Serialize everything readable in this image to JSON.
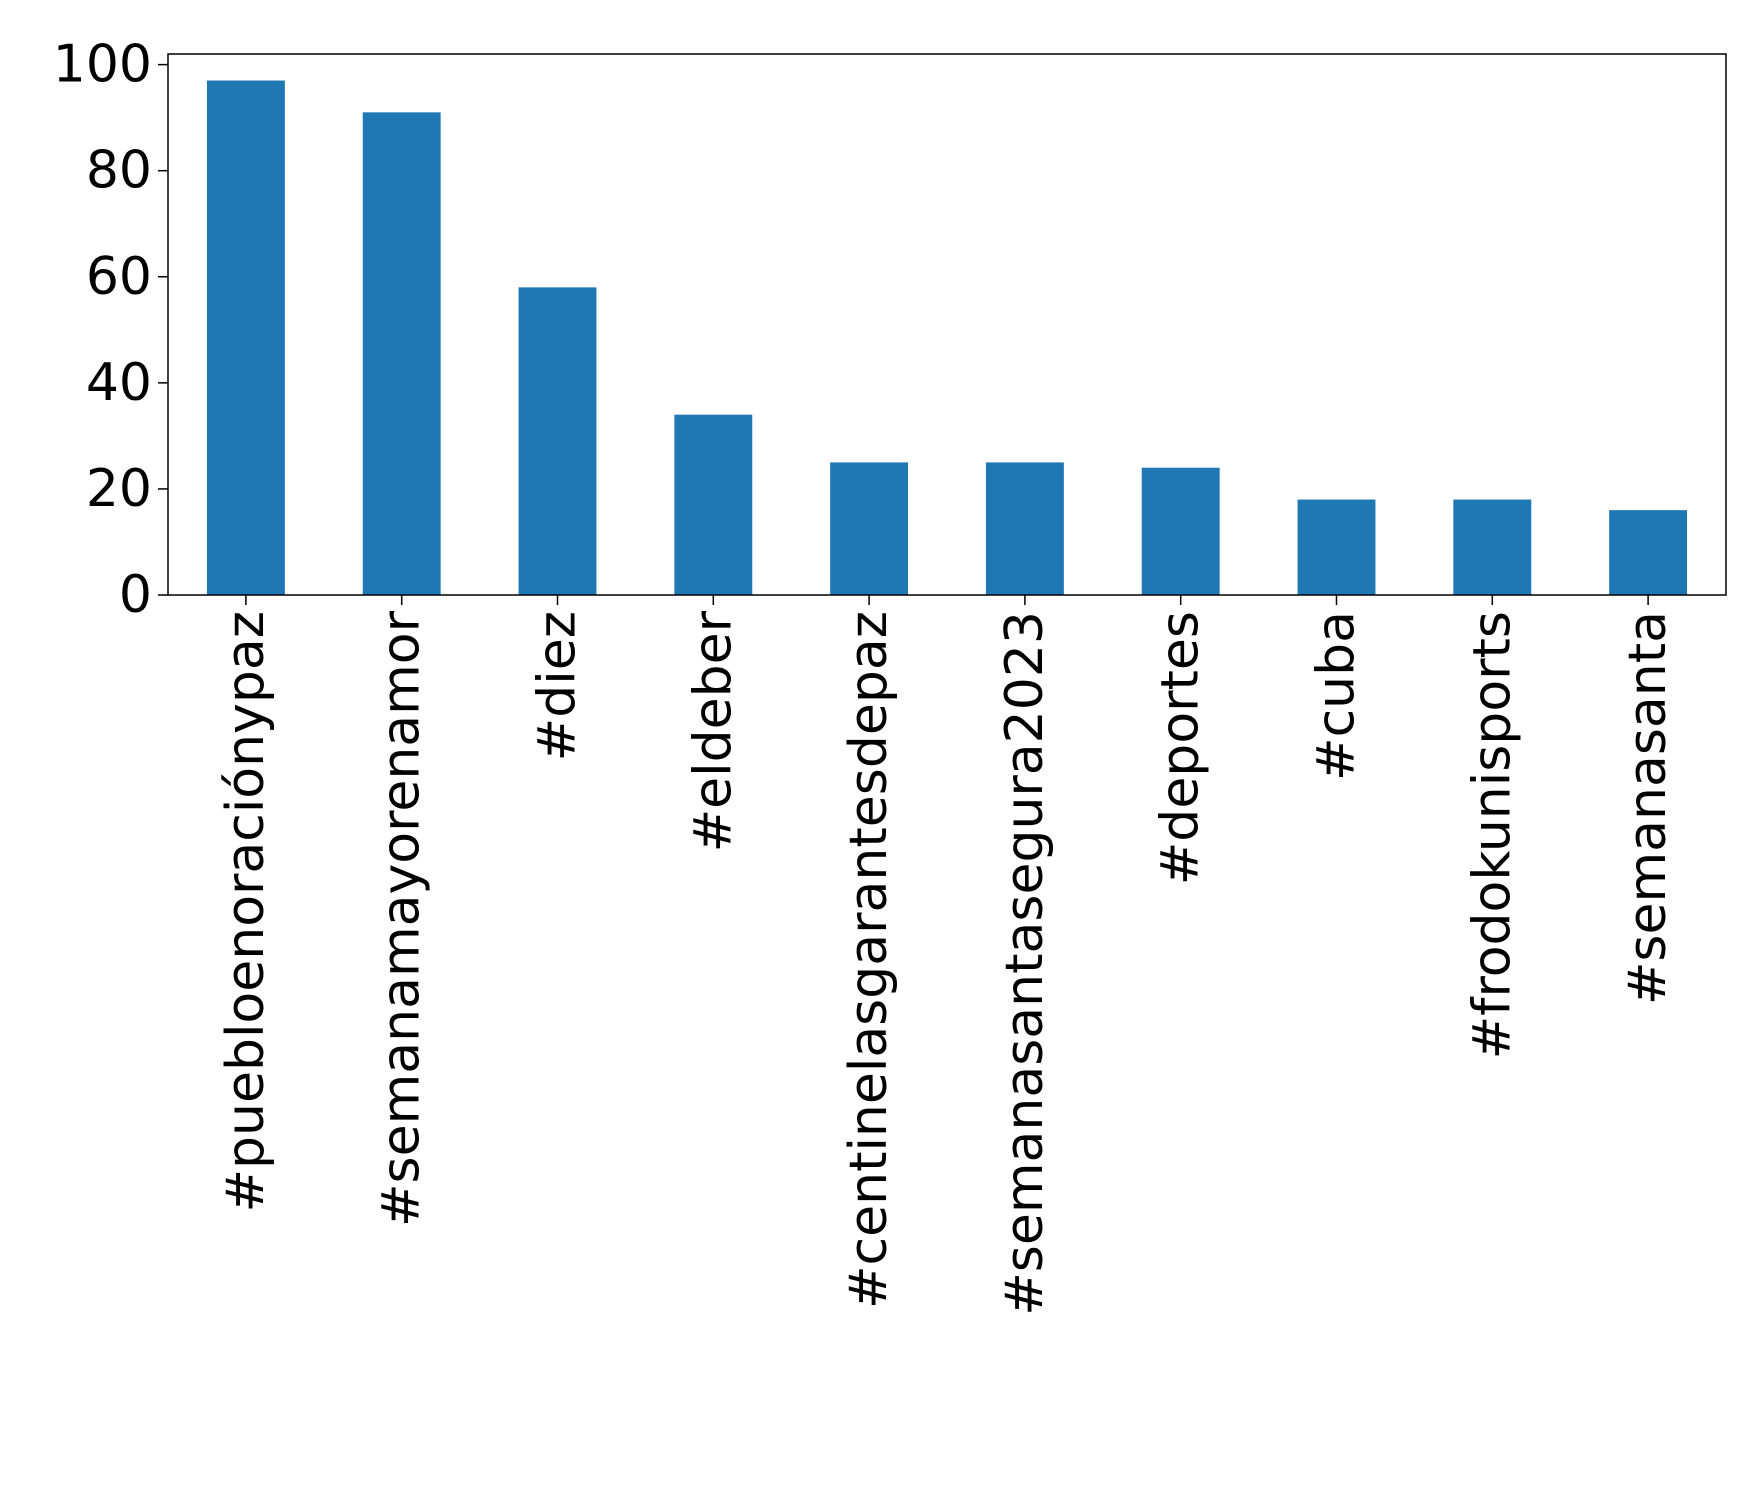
{
  "chart_data": {
    "type": "bar",
    "title": "",
    "xlabel": "",
    "ylabel": "",
    "categories": [
      "#puebloenoraciónypaz",
      "#semanamayorenamor",
      "#diez",
      "#eldeber",
      "#centinelasgarantesdepaz",
      "#semanasantasegura2023",
      "#deportes",
      "#cuba",
      "#frodokunisports",
      "#semanasanta"
    ],
    "values": [
      97,
      91,
      58,
      34,
      25,
      25,
      24,
      18,
      18,
      16
    ],
    "ylim": [
      0,
      102
    ],
    "yticks": [
      0,
      20,
      40,
      60,
      80,
      100
    ],
    "ytick_labels": [
      "0",
      "20",
      "40",
      "60",
      "80",
      "100"
    ],
    "grid": false,
    "legend": "none",
    "bar_color": "#1f77b4"
  }
}
